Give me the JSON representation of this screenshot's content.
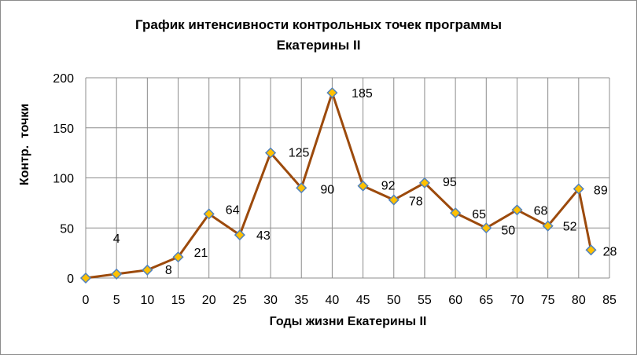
{
  "chart_data": {
    "type": "line",
    "title": [
      "График  интенсивности контрольных точек  программы",
      "Екатерины II"
    ],
    "xlabel": "Годы жизни Екатерины II",
    "ylabel": "Контр.  точки",
    "xlim": [
      0,
      85
    ],
    "ylim": [
      0,
      200
    ],
    "x_ticks": [
      0,
      5,
      10,
      15,
      20,
      25,
      30,
      35,
      40,
      45,
      50,
      55,
      60,
      65,
      70,
      75,
      80,
      85
    ],
    "y_ticks": [
      0,
      50,
      100,
      150,
      200
    ],
    "grid": true,
    "legend": "none",
    "series": [
      {
        "x": [
          0,
          5,
          10,
          15,
          20,
          25,
          30,
          35,
          40,
          45,
          50,
          55,
          60,
          65,
          70,
          75,
          80,
          82
        ],
        "values": [
          0,
          4,
          8,
          21,
          64,
          43,
          125,
          90,
          185,
          92,
          78,
          95,
          65,
          50,
          68,
          52,
          89,
          28
        ],
        "labels": [
          "",
          "4",
          "8",
          "21",
          "64",
          "43",
          "125",
          "90",
          "185",
          "92",
          "78",
          "95",
          "65",
          "50",
          "68",
          "52",
          "89",
          "28"
        ]
      }
    ],
    "colors": {
      "line": "#9c4a0c",
      "marker_fill": "#ffc000",
      "marker_stroke": "#4f81bd",
      "grid": "#8c8c8c"
    }
  }
}
